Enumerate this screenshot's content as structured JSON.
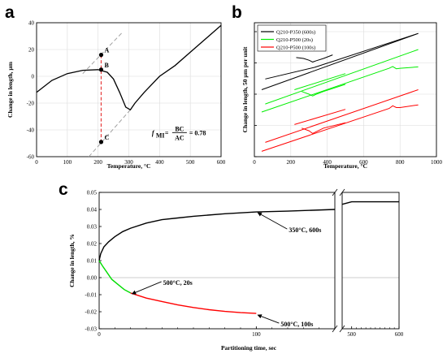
{
  "chart_data": [
    {
      "panel": "a",
      "type": "line",
      "xlabel": "Temperature, °C",
      "ylabel": "Change in length, µm",
      "xlim": [
        0,
        600
      ],
      "ylim": [
        -60,
        40
      ],
      "xticks": [
        0,
        100,
        200,
        300,
        400,
        500,
        600
      ],
      "yticks": [
        -60,
        -40,
        -20,
        0,
        20,
        40
      ],
      "grid": true,
      "series": [
        {
          "x": [
            0,
            50,
            100,
            150,
            200,
            230,
            250,
            270,
            290,
            305,
            320,
            350,
            400,
            450,
            500,
            550,
            600
          ],
          "y": [
            -12,
            -3,
            2,
            4.5,
            5,
            3,
            -2,
            -12,
            -23,
            -25,
            -20,
            -12,
            0,
            8,
            18,
            28,
            38
          ]
        }
      ],
      "extrapolations": [
        {
          "x": [
            150,
            280
          ],
          "y": [
            2,
            33
          ]
        },
        {
          "x": [
            170,
            305
          ],
          "y": [
            -60,
            -25
          ]
        }
      ],
      "points": [
        {
          "label": "A",
          "x": 210,
          "y": 16
        },
        {
          "label": "B",
          "x": 210,
          "y": 5
        },
        {
          "label": "C",
          "x": 210,
          "y": -49
        }
      ],
      "formula": {
        "f": "f",
        "sub": "MI",
        "eq": "=",
        "num": "BC",
        "den": "AC",
        "value": "= 0.78"
      }
    },
    {
      "panel": "b",
      "type": "line",
      "xlabel": "Temperature, °C",
      "ylabel": "Change in length, 50 µm per unit",
      "xlim": [
        0,
        1000
      ],
      "xticks": [
        0,
        200,
        400,
        600,
        800,
        1000
      ],
      "grid": true,
      "legend_position": "top-left",
      "series": [
        {
          "name": "Q210-P350 (600s)",
          "color": "#000000",
          "segments": [
            {
              "x": [
                40,
                900
              ],
              "y": [
                0.5,
                6.8
              ]
            },
            {
              "x": [
                60,
                330
              ],
              "y": [
                1.7,
                3.0
              ]
            },
            {
              "x": [
                330,
                900
              ],
              "y": [
                3.0,
                6.8
              ]
            },
            {
              "x": [
                230,
                270,
                300,
                320,
                340,
                380,
                430
              ],
              "y": [
                4.1,
                4.0,
                3.8,
                3.6,
                3.75,
                4.0,
                4.4
              ]
            }
          ]
        },
        {
          "name": "Q210-P500 (20s)",
          "color": "#00ee00",
          "segments": [
            {
              "x": [
                40,
                740,
                760,
                780,
                800,
                900
              ],
              "y": [
                -2.0,
                2.9,
                3.1,
                2.85,
                2.9,
                3.05
              ]
            },
            {
              "x": [
                60,
                900
              ],
              "y": [
                -1.1,
                5.0
              ]
            },
            {
              "x": [
                220,
                500
              ],
              "y": [
                0.5,
                2.3
              ]
            },
            {
              "x": [
                260,
                300,
                320,
                340,
                380,
                500
              ],
              "y": [
                0.3,
                0.0,
                -0.2,
                0.0,
                0.3,
                1.1
              ]
            }
          ]
        },
        {
          "name": "Q210-P500 (100s)",
          "color": "#ff0000",
          "segments": [
            {
              "x": [
                40,
                740,
                760,
                780,
                800,
                900
              ],
              "y": [
                -6.4,
                -1.6,
                -1.3,
                -1.5,
                -1.5,
                -1.2
              ]
            },
            {
              "x": [
                60,
                900
              ],
              "y": [
                -5.4,
                0.5
              ]
            },
            {
              "x": [
                220,
                500
              ],
              "y": [
                -3.4,
                -1.7
              ]
            },
            {
              "x": [
                260,
                300,
                320,
                340,
                380,
                500
              ],
              "y": [
                -3.8,
                -4.1,
                -4.4,
                -4.2,
                -3.8,
                -3.2
              ]
            }
          ]
        }
      ]
    },
    {
      "panel": "c",
      "type": "line",
      "xlabel": "Partitioning time, sec",
      "ylabel": "Change in length, %",
      "xlim": [
        0,
        600
      ],
      "x_break": [
        150,
        480
      ],
      "xticks": [
        0,
        100,
        500,
        600
      ],
      "ylim": [
        -0.03,
        0.05
      ],
      "yticks": [
        0.05,
        0.04,
        0.03,
        0.02,
        0.01,
        0.0,
        -0.01,
        -0.02,
        -0.03
      ],
      "grid": true,
      "series": [
        {
          "name": "350°C, 600s",
          "color": "#000000",
          "x": [
            0,
            1,
            3,
            6,
            10,
            15,
            20,
            30,
            40,
            50,
            60,
            80,
            100,
            120,
            150,
            480,
            500,
            550,
            600
          ],
          "y": [
            0.01,
            0.014,
            0.018,
            0.021,
            0.024,
            0.027,
            0.029,
            0.032,
            0.034,
            0.035,
            0.036,
            0.0375,
            0.0385,
            0.039,
            0.04,
            0.043,
            0.0445,
            0.0445,
            0.0445
          ]
        },
        {
          "name": "500°C, 20s",
          "color": "#00dd00",
          "x": [
            0,
            2,
            5,
            8,
            12,
            16,
            20
          ],
          "y": [
            0.01,
            0.007,
            0.003,
            -0.001,
            -0.004,
            -0.007,
            -0.009
          ]
        },
        {
          "name": "500°C, 100s",
          "color": "#ff0000",
          "x": [
            20,
            30,
            40,
            50,
            60,
            70,
            80,
            90,
            100
          ],
          "y": [
            -0.009,
            -0.012,
            -0.014,
            -0.016,
            -0.0175,
            -0.0188,
            -0.0198,
            -0.0205,
            -0.021
          ]
        }
      ],
      "annotations": [
        {
          "text": "350°C, 600s",
          "x": 100,
          "y": 0.039
        },
        {
          "text": "500°C, 20s",
          "x": 20,
          "y": -0.009
        },
        {
          "text": "500°C, 100s",
          "x": 100,
          "y": -0.021
        }
      ]
    }
  ]
}
